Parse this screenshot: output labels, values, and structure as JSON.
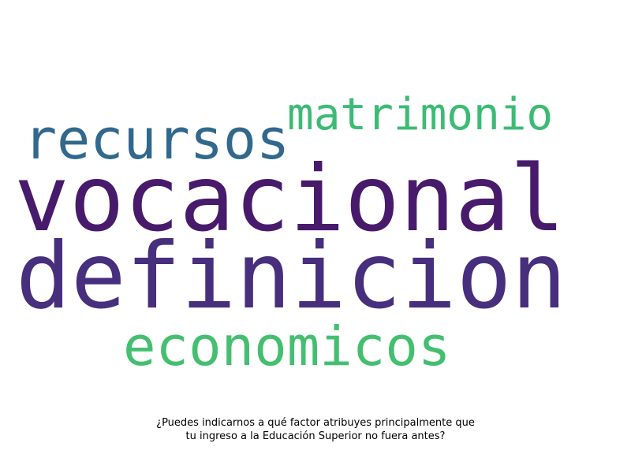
{
  "wordcloud": {
    "words": [
      {
        "text": "vocacional",
        "color": "#481a6c"
      },
      {
        "text": "definicion",
        "color": "#472f7d"
      },
      {
        "text": "recursos",
        "color": "#31688e"
      },
      {
        "text": "matrimonio",
        "color": "#3cbb75"
      },
      {
        "text": "economicos",
        "color": "#44bf70"
      }
    ]
  },
  "caption": {
    "line1": "¿Puedes indicarnos a qué factor atribuyes principalmente que",
    "line2": "tu ingreso a la Educación Superior no fuera antes?"
  }
}
